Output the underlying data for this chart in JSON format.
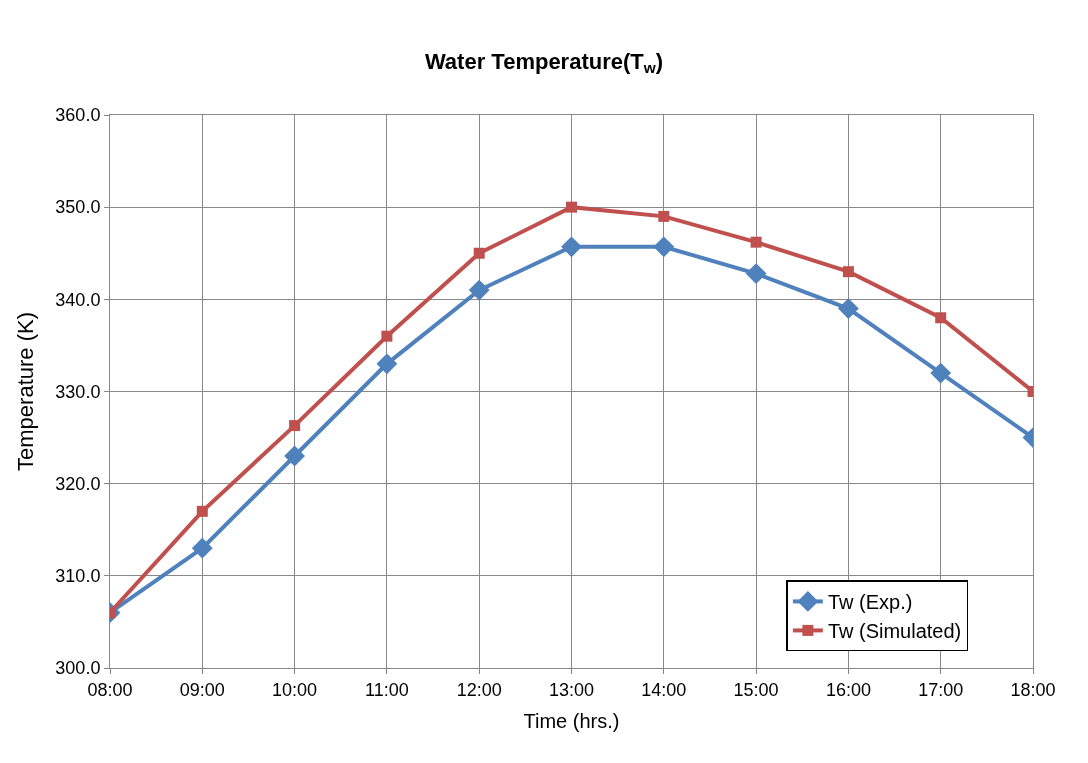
{
  "chart_data": {
    "type": "line",
    "title": "Water Temperature(T$_{w}$)",
    "xlabel": "Time (hrs.)",
    "ylabel": "Temperature (K)",
    "x": [
      8,
      9,
      10,
      11,
      12,
      13,
      14,
      15,
      16,
      17,
      18
    ],
    "xlim": [
      8,
      18
    ],
    "xticks": [
      {
        "value": 8,
        "label": "08:00"
      },
      {
        "value": 9,
        "label": "09:00"
      },
      {
        "value": 10,
        "label": "10:00"
      },
      {
        "value": 11,
        "label": "11:00"
      },
      {
        "value": 12,
        "label": "12:00"
      },
      {
        "value": 13,
        "label": "13:00"
      },
      {
        "value": 14,
        "label": "14:00"
      },
      {
        "value": 15,
        "label": "15:00"
      },
      {
        "value": 16,
        "label": "16:00"
      },
      {
        "value": 17,
        "label": "17:00"
      },
      {
        "value": 18,
        "label": "18:00"
      }
    ],
    "ylim": [
      300,
      360
    ],
    "yticks": [
      {
        "value": 300,
        "label": "300.0"
      },
      {
        "value": 310,
        "label": "310.0"
      },
      {
        "value": 320,
        "label": "320.0"
      },
      {
        "value": 330,
        "label": "330.0"
      },
      {
        "value": 340,
        "label": "340.0"
      },
      {
        "value": 350,
        "label": "350.0"
      },
      {
        "value": 360,
        "label": "360.0"
      }
    ],
    "grid": true,
    "legend": "bottom right",
    "line_style": "solid",
    "series": [
      {
        "name": "Tw (Exp.)",
        "color": "#4f81bd",
        "marker": "diamond",
        "values": [
          306,
          313,
          323,
          333,
          341,
          345.7,
          345.7,
          342.8,
          339,
          332,
          325
        ]
      },
      {
        "name": "Tw (Simulated)",
        "color": "#c0504d",
        "marker": "square",
        "values": [
          306,
          317,
          326.3,
          336,
          345,
          350,
          349,
          346.2,
          343,
          338,
          330
        ]
      }
    ]
  }
}
